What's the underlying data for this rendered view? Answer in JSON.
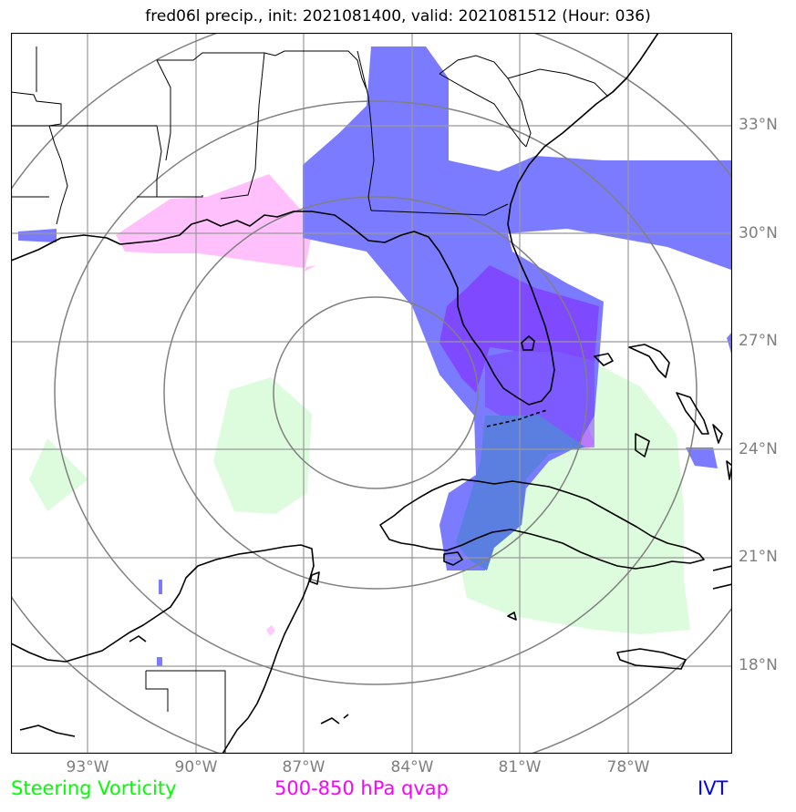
{
  "title": "fred06l precip., init: 2021081400, valid: 2021081512 (Hour: 036)",
  "lat_labels": [
    "33°N",
    "30°N",
    "27°N",
    "24°N",
    "21°N",
    "18°N"
  ],
  "lon_labels": [
    "93°W",
    "90°W",
    "87°W",
    "84°W",
    "81°W",
    "78°W"
  ],
  "legend": {
    "steering": {
      "label": "Steering Vorticity",
      "color": "#00ff00"
    },
    "qvap": {
      "label": "500-850 hPa qvap",
      "color": "#ff00ff"
    },
    "ivt": {
      "label": "IVT",
      "color": "#0000ff"
    }
  },
  "fill_colors": {
    "ivt": "#7b7bff",
    "ivt_strong": "#7f40ff",
    "steering": "#ddfcdd",
    "qvap": "#ffc0fb",
    "overlap": "#5a7fe0"
  }
}
